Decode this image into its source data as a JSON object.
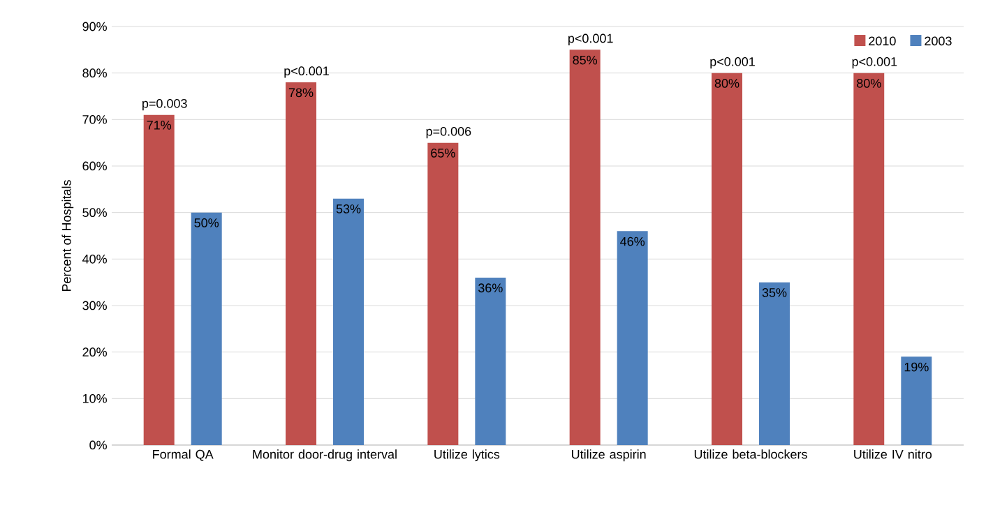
{
  "chart_data": {
    "type": "bar",
    "ylabel": "Percent of Hospitals",
    "categories": [
      "Formal QA",
      "Monitor door-drug interval",
      "Utilize lytics",
      "Utilize aspirin",
      "Utilize beta-blockers",
      "Utilize IV nitro"
    ],
    "series": [
      {
        "name": "2010",
        "color": "#c0504d",
        "values": [
          71,
          78,
          65,
          85,
          80,
          80
        ],
        "value_labels": [
          "71%",
          "78%",
          "65%",
          "85%",
          "80%",
          "80%"
        ]
      },
      {
        "name": "2003",
        "color": "#4f81bd",
        "values": [
          50,
          53,
          36,
          46,
          35,
          19
        ],
        "value_labels": [
          "50%",
          "53%",
          "36%",
          "46%",
          "35%",
          "19%"
        ]
      }
    ],
    "ylim": [
      0,
      90
    ],
    "yticks": [
      {
        "value": 0,
        "label": "0%"
      },
      {
        "value": 10,
        "label": "10%"
      },
      {
        "value": 20,
        "label": "20%"
      },
      {
        "value": 30,
        "label": "30%"
      },
      {
        "value": 40,
        "label": "40%"
      },
      {
        "value": 50,
        "label": "50%"
      },
      {
        "value": 60,
        "label": "60%"
      },
      {
        "value": 70,
        "label": "70%"
      },
      {
        "value": 80,
        "label": "80%"
      },
      {
        "value": 90,
        "label": "90%"
      }
    ],
    "grid": "y",
    "legend": "top right",
    "annotations": [
      "p=0.003",
      "p<0.001",
      "p=0.006",
      "p<0.001",
      "p<0.001",
      "p<0.001"
    ]
  }
}
